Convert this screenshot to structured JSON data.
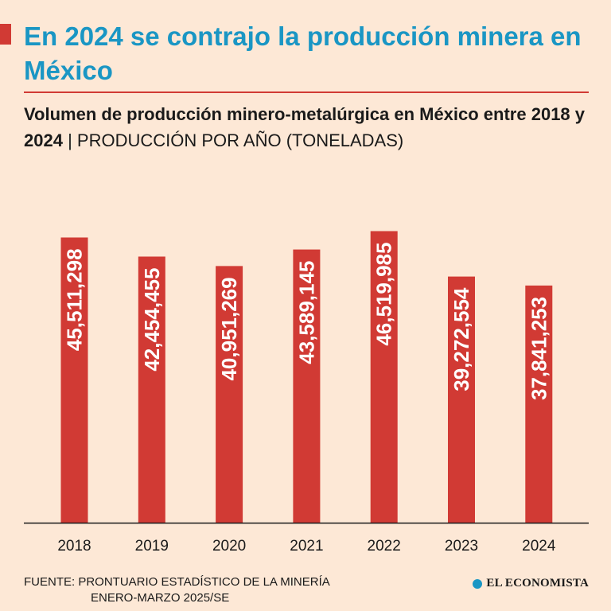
{
  "header": {
    "headline": "En 2024 se contrajo la producción minera en México",
    "subtitle_bold": "Volumen de producción minero-metalúrgica en México entre 2018 y 2024",
    "subtitle_separator": " | ",
    "subtitle_light": "PRODUCCIÓN POR AÑO (TONELADAS)"
  },
  "colors": {
    "background": "#fde8d6",
    "bar": "#d13a34",
    "headline": "#1a96c4",
    "text": "#1a1a1a"
  },
  "chart_data": {
    "type": "bar",
    "title": "Volumen de producción minero-metalúrgica en México entre 2018 y 2024",
    "ylabel": "Producción por año (toneladas)",
    "xlabel": "",
    "categories": [
      "2018",
      "2019",
      "2020",
      "2021",
      "2022",
      "2023",
      "2024"
    ],
    "values": [
      45511298,
      42454455,
      40951269,
      43589145,
      46519985,
      39272554,
      37841253
    ],
    "value_labels": [
      "45,511,298",
      "42,454,455",
      "40,951,269",
      "43,589,145",
      "46,519,985",
      "39,272,554",
      "37,841,253"
    ],
    "ylim": [
      0,
      47600000
    ],
    "grid": false,
    "legend": "none"
  },
  "footer": {
    "source_line1": "FUENTE: PRONTUARIO ESTADÍSTICO DE LA MINERÍA",
    "source_line2": "ENERO-MARZO 2025/SE",
    "brand": "EL ECONOMISTA",
    "brand_icon": "economista-e-icon"
  }
}
